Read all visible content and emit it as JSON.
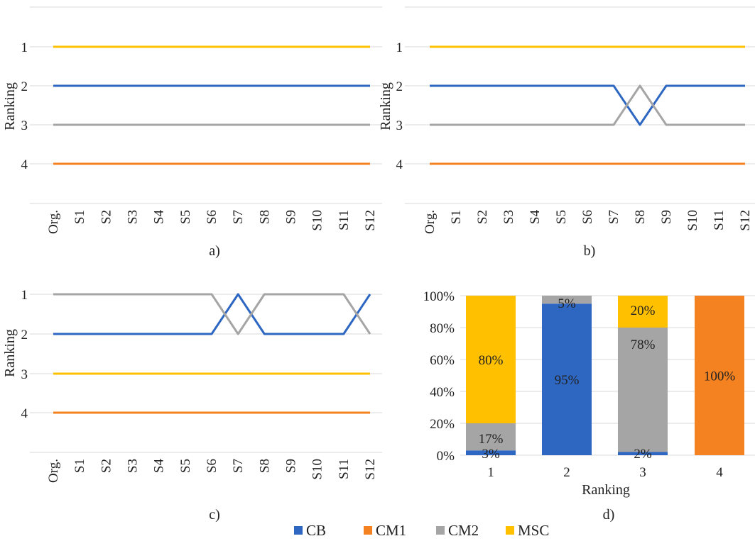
{
  "colors": {
    "CB": "#2e67c2",
    "CM1": "#f58220",
    "CM2": "#a5a5a5",
    "MSC": "#ffc000"
  },
  "legend": {
    "items": [
      {
        "name": "CB",
        "color": "#2e67c2"
      },
      {
        "name": "CM1",
        "color": "#f58220"
      },
      {
        "name": "CM2",
        "color": "#a5a5a5"
      },
      {
        "name": "MSC",
        "color": "#ffc000"
      }
    ]
  },
  "chart_data": [
    {
      "type": "line",
      "caption": "a)",
      "ylabel": "Ranking",
      "xlabel": "",
      "y_ticks": [
        "1",
        "2",
        "3",
        "4"
      ],
      "y_reversed": true,
      "ylim": [
        0,
        5
      ],
      "grid": true,
      "categories": [
        "Org.",
        "S1",
        "S2",
        "S3",
        "S4",
        "S5",
        "S6",
        "S7",
        "S8",
        "S9",
        "S10",
        "S11",
        "S12"
      ],
      "series": [
        {
          "name": "CB",
          "color": "#2e67c2",
          "values": [
            2,
            2,
            2,
            2,
            2,
            2,
            2,
            2,
            2,
            2,
            2,
            2,
            2
          ]
        },
        {
          "name": "CM1",
          "color": "#f58220",
          "values": [
            4,
            4,
            4,
            4,
            4,
            4,
            4,
            4,
            4,
            4,
            4,
            4,
            4
          ]
        },
        {
          "name": "CM2",
          "color": "#a5a5a5",
          "values": [
            3,
            3,
            3,
            3,
            3,
            3,
            3,
            3,
            3,
            3,
            3,
            3,
            3
          ]
        },
        {
          "name": "MSC",
          "color": "#ffc000",
          "values": [
            1,
            1,
            1,
            1,
            1,
            1,
            1,
            1,
            1,
            1,
            1,
            1,
            1
          ]
        }
      ]
    },
    {
      "type": "line",
      "caption": "b)",
      "ylabel": "Ranking",
      "xlabel": "",
      "y_ticks": [
        "1",
        "2",
        "3",
        "4"
      ],
      "y_reversed": true,
      "ylim": [
        0,
        5
      ],
      "grid": true,
      "categories": [
        "Org.",
        "S1",
        "S2",
        "S3",
        "S4",
        "S5",
        "S6",
        "S7",
        "S8",
        "S9",
        "S10",
        "S11",
        "S12"
      ],
      "series": [
        {
          "name": "CB",
          "color": "#2e67c2",
          "values": [
            2,
            2,
            2,
            2,
            2,
            2,
            2,
            2,
            3,
            2,
            2,
            2,
            2
          ]
        },
        {
          "name": "CM1",
          "color": "#f58220",
          "values": [
            4,
            4,
            4,
            4,
            4,
            4,
            4,
            4,
            4,
            4,
            4,
            4,
            4
          ]
        },
        {
          "name": "CM2",
          "color": "#a5a5a5",
          "values": [
            3,
            3,
            3,
            3,
            3,
            3,
            3,
            3,
            2,
            3,
            3,
            3,
            3
          ]
        },
        {
          "name": "MSC",
          "color": "#ffc000",
          "values": [
            1,
            1,
            1,
            1,
            1,
            1,
            1,
            1,
            1,
            1,
            1,
            1,
            1
          ]
        }
      ]
    },
    {
      "type": "line",
      "caption": "c)",
      "ylabel": "Ranking",
      "xlabel": "",
      "y_ticks": [
        "1",
        "2",
        "3",
        "4"
      ],
      "y_reversed": true,
      "ylim": [
        1,
        5
      ],
      "grid": true,
      "categories": [
        "Org.",
        "S1",
        "S2",
        "S3",
        "S4",
        "S5",
        "S6",
        "S7",
        "S8",
        "S9",
        "S10",
        "S11",
        "S12"
      ],
      "series": [
        {
          "name": "CB",
          "color": "#2e67c2",
          "values": [
            2,
            2,
            2,
            2,
            2,
            2,
            2,
            1,
            2,
            2,
            2,
            2,
            1
          ]
        },
        {
          "name": "CM1",
          "color": "#f58220",
          "values": [
            4,
            4,
            4,
            4,
            4,
            4,
            4,
            4,
            4,
            4,
            4,
            4,
            4
          ]
        },
        {
          "name": "CM2",
          "color": "#a5a5a5",
          "values": [
            1,
            1,
            1,
            1,
            1,
            1,
            1,
            2,
            1,
            1,
            1,
            1,
            2
          ]
        },
        {
          "name": "MSC",
          "color": "#ffc000",
          "values": [
            3,
            3,
            3,
            3,
            3,
            3,
            3,
            3,
            3,
            3,
            3,
            3,
            3
          ]
        }
      ]
    },
    {
      "type": "bar",
      "stacked": true,
      "caption": "d)",
      "xlabel": "Ranking",
      "ylabel": "",
      "categories": [
        "1",
        "2",
        "3",
        "4"
      ],
      "y_ticks": [
        "0%",
        "20%",
        "40%",
        "60%",
        "80%",
        "100%"
      ],
      "ylim": [
        0,
        100
      ],
      "grid": true,
      "series": [
        {
          "name": "CB",
          "color": "#2e67c2",
          "values": [
            3,
            95,
            2,
            0
          ],
          "labels": [
            "3%",
            "95%",
            "2%",
            ""
          ]
        },
        {
          "name": "CM1",
          "color": "#f58220",
          "values": [
            0,
            0,
            0,
            100
          ],
          "labels": [
            "",
            "",
            "",
            "100%"
          ]
        },
        {
          "name": "CM2",
          "color": "#a5a5a5",
          "values": [
            17,
            5,
            78,
            0
          ],
          "labels": [
            "17%",
            "5%",
            "78%",
            ""
          ]
        },
        {
          "name": "MSC",
          "color": "#ffc000",
          "values": [
            80,
            0,
            20,
            0
          ],
          "labels": [
            "80%",
            "",
            "20%",
            ""
          ]
        }
      ]
    }
  ]
}
